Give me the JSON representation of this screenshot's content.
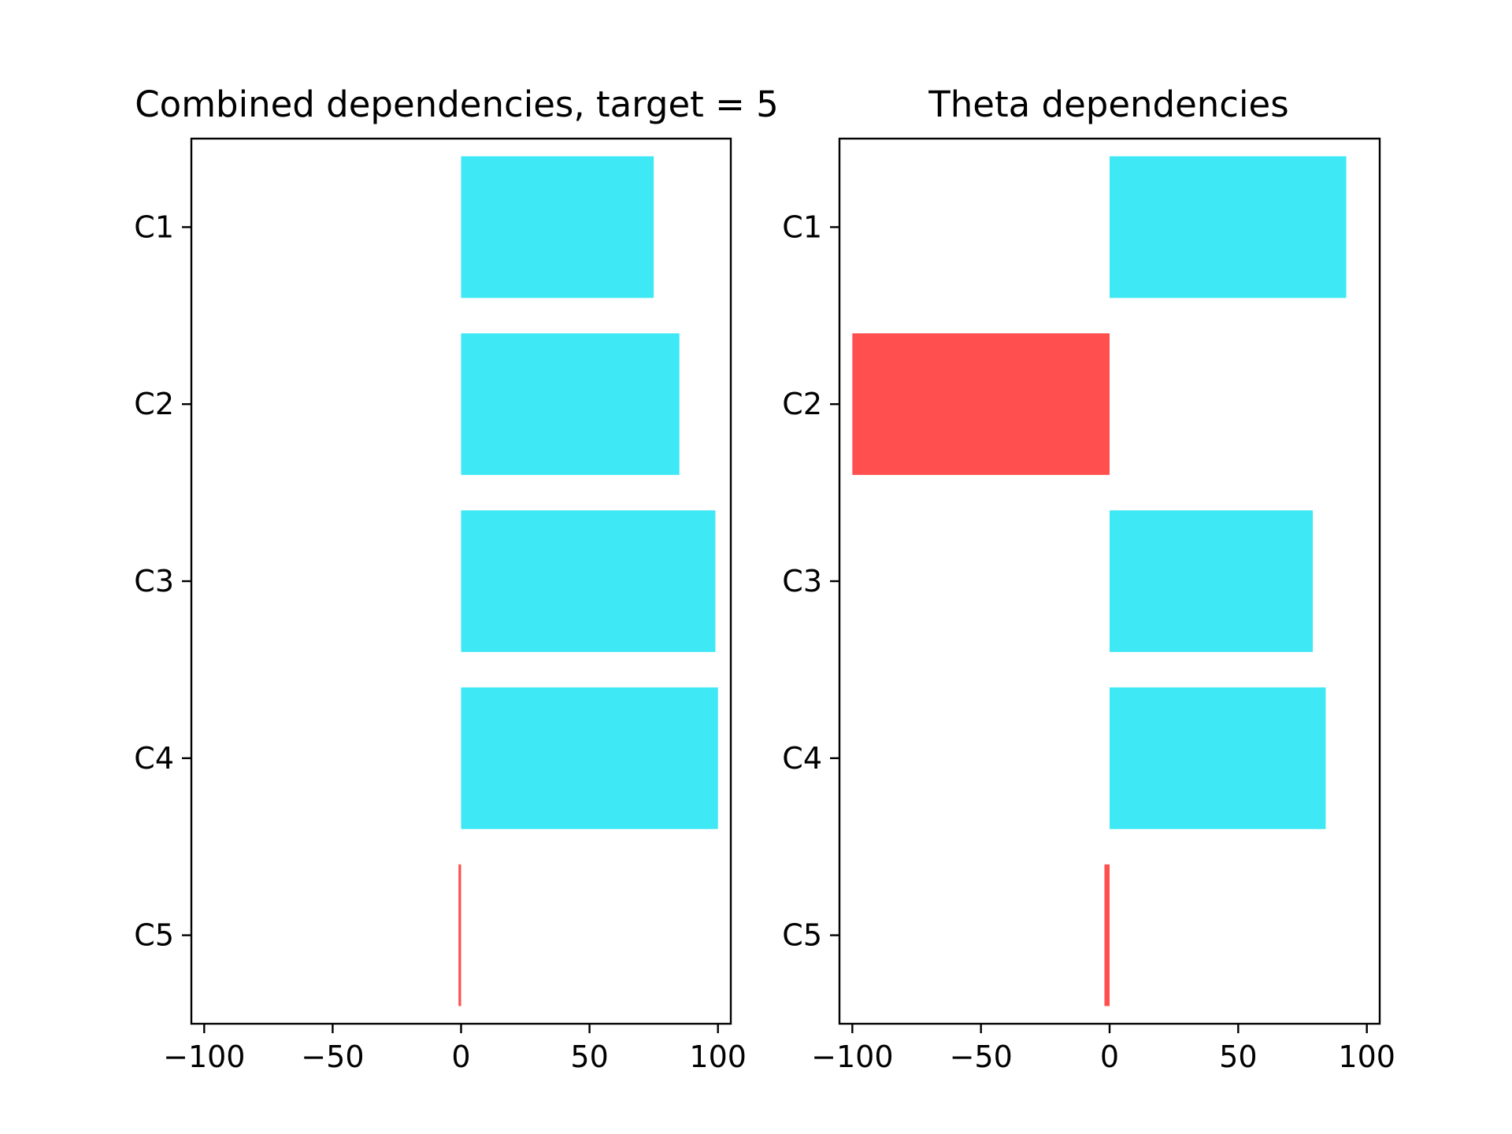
{
  "figure": {
    "background": "#ffffff"
  },
  "chart_data": [
    {
      "type": "bar",
      "orientation": "horizontal",
      "title": "Combined dependencies, target = 5",
      "xlabel": "",
      "ylabel": "",
      "categories": [
        "C1",
        "C2",
        "C3",
        "C4",
        "C5"
      ],
      "values": [
        75,
        85,
        99,
        100,
        -1
      ],
      "xlim": [
        -105,
        105
      ],
      "xticks": [
        -100,
        -50,
        0,
        50,
        100
      ],
      "xtick_labels": [
        "−100",
        "−50",
        "0",
        "50",
        "100"
      ],
      "positive_color": "#3ee8f5",
      "negative_color": "#ff4f4f",
      "grid": false,
      "legend": null
    },
    {
      "type": "bar",
      "orientation": "horizontal",
      "title": "Theta dependencies",
      "xlabel": "",
      "ylabel": "",
      "categories": [
        "C1",
        "C2",
        "C3",
        "C4",
        "C5"
      ],
      "values": [
        92,
        -100,
        79,
        84,
        -2
      ],
      "xlim": [
        -105,
        105
      ],
      "xticks": [
        -100,
        -50,
        0,
        50,
        100
      ],
      "xtick_labels": [
        "−100",
        "−50",
        "0",
        "50",
        "100"
      ],
      "positive_color": "#3ee8f5",
      "negative_color": "#ff4f4f",
      "grid": false,
      "legend": null
    }
  ]
}
